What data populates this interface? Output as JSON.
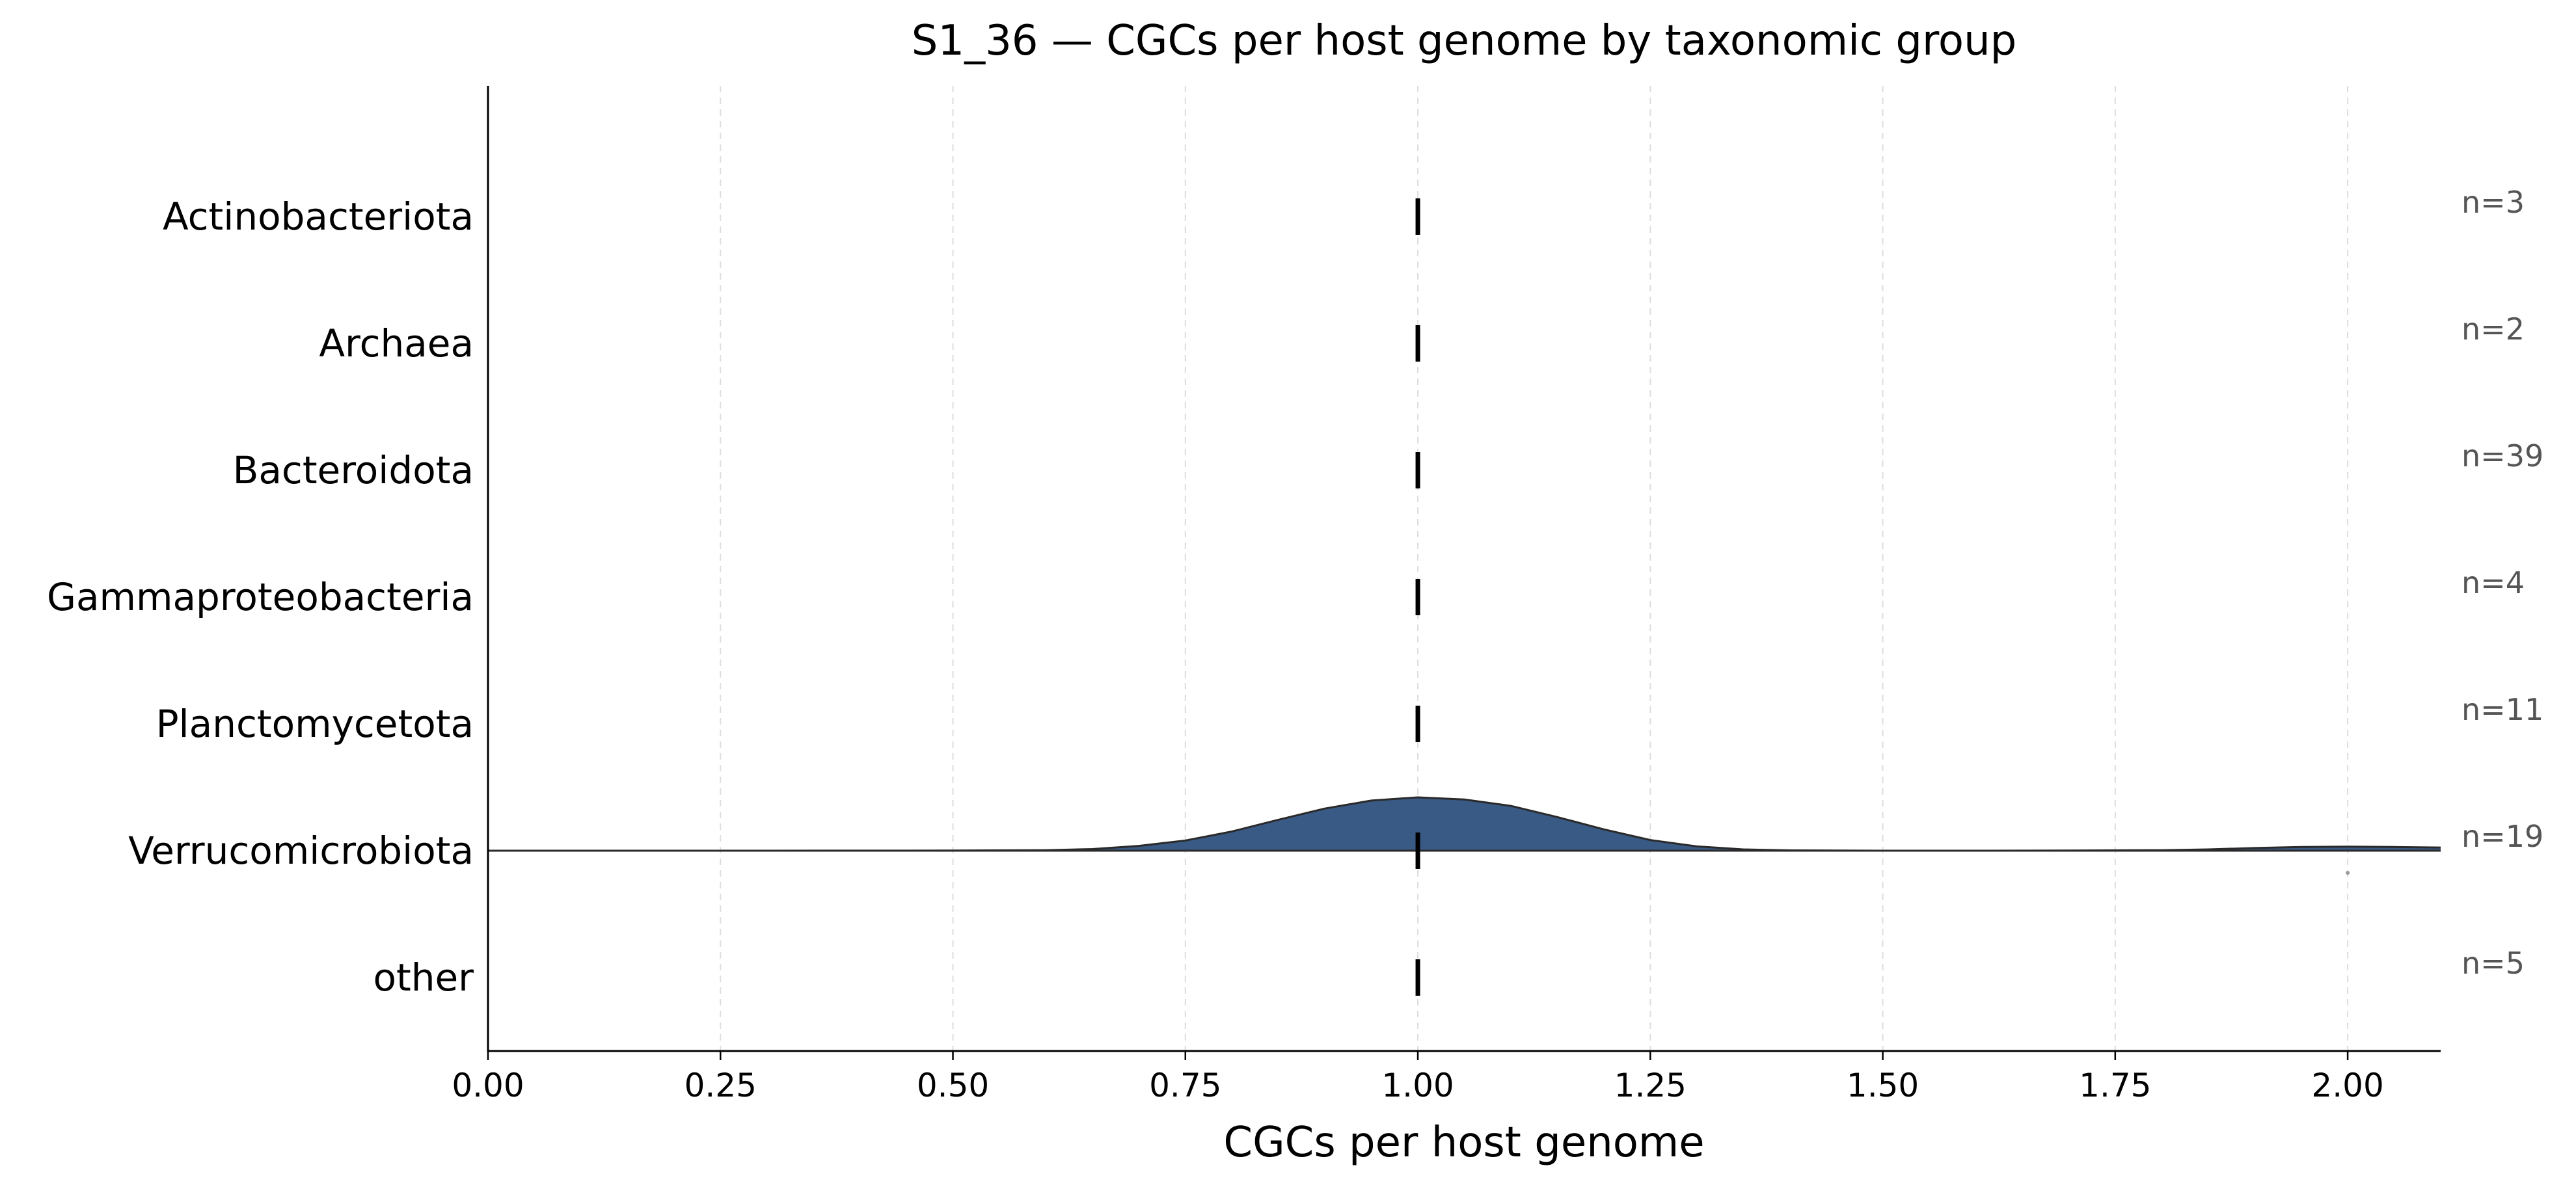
{
  "chart_data": {
    "type": "ridgeline",
    "title": "S1_36 — CGCs per host genome by taxonomic group",
    "xlabel": "CGCs per host genome",
    "ylabel": "",
    "xlim": [
      0.0,
      2.1
    ],
    "x_ticks": [
      0.0,
      0.25,
      0.5,
      0.75,
      1.0,
      1.25,
      1.5,
      1.75,
      2.0
    ],
    "x_tick_labels": [
      "0.00",
      "0.25",
      "0.50",
      "0.75",
      "1.00",
      "1.25",
      "1.50",
      "1.75",
      "2.00"
    ],
    "grid": "vertical dashed",
    "groups": [
      {
        "label": "Actinobacteriota",
        "count_label": "n=3",
        "n": 3,
        "median": 1.0
      },
      {
        "label": "Archaea",
        "count_label": "n=2",
        "n": 2,
        "median": 1.0
      },
      {
        "label": "Bacteroidota",
        "count_label": "n=39",
        "n": 39,
        "median": 1.0
      },
      {
        "label": "Gammaproteobacteria",
        "count_label": "n=4",
        "n": 4,
        "median": 1.0
      },
      {
        "label": "Planctomycetota",
        "count_label": "n=11",
        "n": 11,
        "median": 1.0
      },
      {
        "label": "Verrucomicrobiota",
        "count_label": "n=19",
        "n": 19,
        "median": 1.0,
        "density": {
          "x": [
            0.0,
            0.3,
            0.5,
            0.6,
            0.65,
            0.7,
            0.75,
            0.8,
            0.85,
            0.9,
            0.95,
            1.0,
            1.05,
            1.1,
            1.15,
            1.2,
            1.25,
            1.3,
            1.35,
            1.4,
            1.5,
            1.6,
            1.7,
            1.8,
            1.85,
            1.9,
            1.95,
            2.0,
            2.05,
            2.1
          ],
          "y": [
            0.0,
            0.0,
            0.002,
            0.01,
            0.03,
            0.09,
            0.19,
            0.36,
            0.58,
            0.79,
            0.94,
            1.0,
            0.96,
            0.84,
            0.63,
            0.4,
            0.2,
            0.08,
            0.025,
            0.006,
            0.0,
            0.0,
            0.002,
            0.01,
            0.025,
            0.05,
            0.07,
            0.075,
            0.07,
            0.06
          ]
        },
        "outliers": [
          2.0
        ]
      },
      {
        "label": "other",
        "count_label": "n=5",
        "n": 5,
        "median": 1.0
      }
    ],
    "colors": {
      "fill": "#3a5a86",
      "outline": "#2a2a2a",
      "median": "#000000",
      "grid": "#dddddd",
      "count_text": "#555555",
      "outlier": "#999999"
    }
  }
}
